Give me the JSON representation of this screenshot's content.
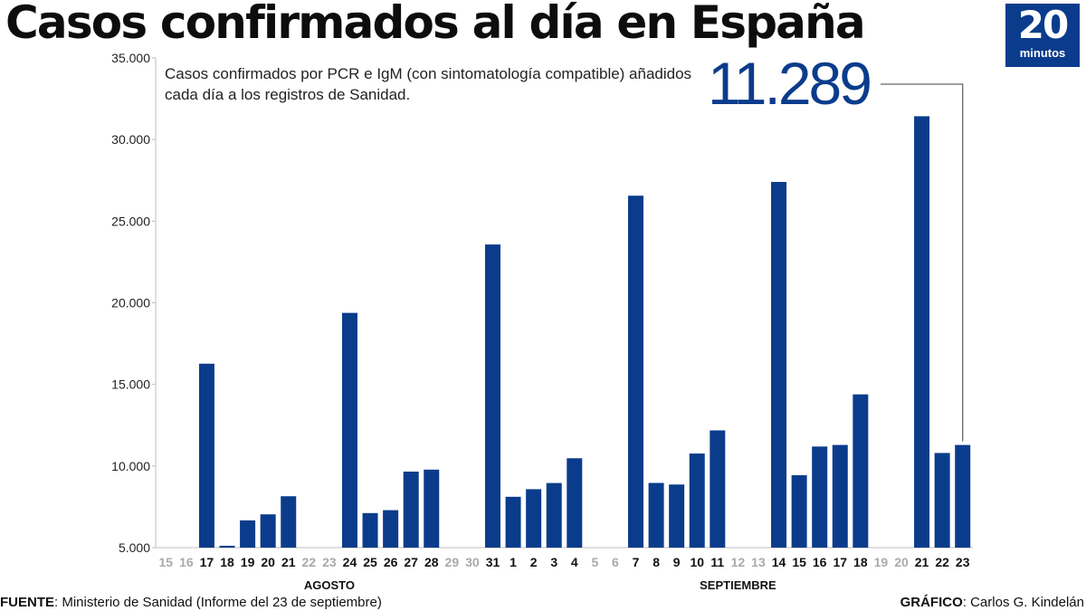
{
  "title": "Casos confirmados al día en España",
  "subtitle": "Casos confirmados por PCR e IgM (con sintomatología compatible) añadidos cada día a los registros de Sanidad.",
  "highlight_value": "11.289",
  "logo": {
    "number": "20",
    "word": "minutos"
  },
  "footer": {
    "source_label": "FUENTE",
    "source_text": ": Ministerio de Sanidad (Informe del 23 de septiembre)",
    "credit_label": "GRÁFICO",
    "credit_text": ": Carlos G. Kindelán"
  },
  "colors": {
    "bar": "#0b3c8c",
    "weekend_label": "#aaaaaa",
    "label": "#111111",
    "axis": "#bfbfbf"
  },
  "chart_data": {
    "type": "bar",
    "title": "Casos confirmados al día en España",
    "xlabel": "",
    "ylabel": "",
    "ylim": [
      5000,
      35000
    ],
    "yticks": [
      5000,
      10000,
      15000,
      20000,
      25000,
      30000,
      35000
    ],
    "ytick_labels": [
      "5.000",
      "10.000",
      "15.000",
      "20.000",
      "25.000",
      "30.000",
      "35.000"
    ],
    "grid": false,
    "categories": [
      "15",
      "16",
      "17",
      "18",
      "19",
      "20",
      "21",
      "22",
      "23",
      "24",
      "25",
      "26",
      "27",
      "28",
      "29",
      "30",
      "31",
      "1",
      "2",
      "3",
      "4",
      "5",
      "6",
      "7",
      "8",
      "9",
      "10",
      "11",
      "12",
      "13",
      "14",
      "15",
      "16",
      "17",
      "18",
      "19",
      "20",
      "21",
      "22",
      "23"
    ],
    "values": [
      null,
      null,
      16269,
      5114,
      6671,
      7039,
      8148,
      null,
      null,
      19382,
      7117,
      7296,
      9658,
      9779,
      null,
      null,
      23572,
      8115,
      8581,
      8959,
      10476,
      null,
      null,
      26560,
      8964,
      8866,
      10764,
      12183,
      null,
      null,
      27404,
      9437,
      11193,
      11291,
      14389,
      null,
      null,
      31428,
      10799,
      11289
    ],
    "weekend": [
      true,
      true,
      false,
      false,
      false,
      false,
      false,
      true,
      true,
      false,
      false,
      false,
      false,
      false,
      true,
      true,
      false,
      false,
      false,
      false,
      false,
      true,
      true,
      false,
      false,
      false,
      false,
      false,
      true,
      true,
      false,
      false,
      false,
      false,
      false,
      true,
      true,
      false,
      false,
      false
    ],
    "months": [
      {
        "label": "AGOSTO",
        "start_index": 0,
        "end_index": 16
      },
      {
        "label": "SEPTIEMBRE",
        "start_index": 17,
        "end_index": 39
      }
    ],
    "annotation": {
      "label": "11.289",
      "index": 39
    }
  }
}
